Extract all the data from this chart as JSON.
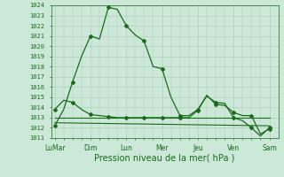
{
  "xlabel": "Pression niveau de la mer( hPa )",
  "background_color": "#cce8d8",
  "grid_color": "#b0c8b8",
  "line_color": "#1a6b1a",
  "ylim": [
    1011,
    1024
  ],
  "yticks": [
    1011,
    1012,
    1013,
    1014,
    1015,
    1016,
    1017,
    1018,
    1019,
    1020,
    1021,
    1022,
    1023,
    1024
  ],
  "xtick_labels": [
    "LuMar",
    "Dim",
    "Lun",
    "Mer",
    "Jeu",
    "Ven",
    "Sam"
  ],
  "xtick_positions": [
    0,
    2,
    4,
    6,
    8,
    10,
    12
  ],
  "line1_x": [
    0,
    0.5,
    1,
    1.5,
    2,
    2.5,
    3,
    3.5,
    4,
    4.5,
    5,
    5.5,
    6,
    6.5,
    7,
    7.5,
    8,
    8.5,
    9,
    9.5,
    10,
    10.5,
    11,
    11.5,
    12
  ],
  "line1_y": [
    1012.2,
    1013.8,
    1016.5,
    1019.0,
    1021.0,
    1020.7,
    1023.8,
    1023.6,
    1022.0,
    1021.1,
    1020.5,
    1018.0,
    1017.8,
    1015.0,
    1013.2,
    1013.2,
    1013.8,
    1015.1,
    1014.5,
    1014.4,
    1013.0,
    1012.7,
    1012.0,
    1011.2,
    1012.0
  ],
  "line1_markers": [
    0,
    2,
    4,
    6,
    8,
    10,
    12,
    14,
    16,
    18,
    20,
    22,
    24
  ],
  "line2_x": [
    0,
    0.5,
    1,
    1.5,
    2,
    2.5,
    3,
    3.5,
    4,
    4.5,
    5,
    5.5,
    6,
    6.5,
    7,
    7.5,
    8,
    8.5,
    9,
    9.5,
    10,
    10.5,
    11,
    11.5,
    12
  ],
  "line2_y": [
    1013.8,
    1014.7,
    1014.5,
    1013.8,
    1013.3,
    1013.2,
    1013.1,
    1013.0,
    1013.0,
    1013.0,
    1013.0,
    1013.0,
    1013.0,
    1013.0,
    1013.0,
    1013.0,
    1013.7,
    1015.2,
    1014.3,
    1014.2,
    1013.5,
    1013.2,
    1013.2,
    1011.4,
    1011.9
  ],
  "line2_markers": [
    0,
    2,
    4,
    6,
    8,
    10,
    12,
    14,
    16,
    18,
    20,
    22,
    24
  ],
  "line3_x": [
    0,
    12
  ],
  "line3_y": [
    1013.0,
    1013.0
  ],
  "line4_x": [
    0,
    12
  ],
  "line4_y": [
    1012.5,
    1012.2
  ]
}
